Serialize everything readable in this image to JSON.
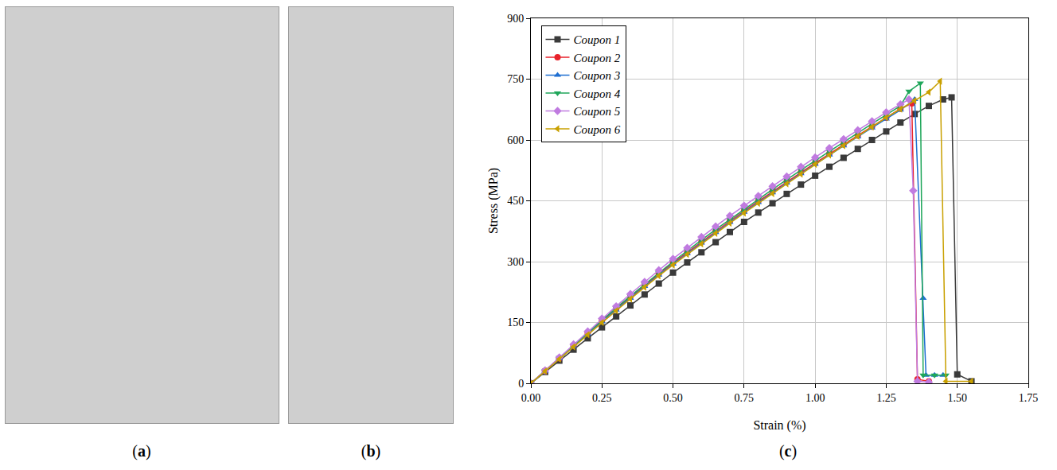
{
  "panel_labels": [
    "(a)",
    "(b)",
    "(c)"
  ],
  "chart_data": {
    "type": "line",
    "x_label": "Strain (%)",
    "y_label": "Stress (MPa)",
    "xlim": [
      0,
      1.75
    ],
    "xticks": [
      {
        "value": 0,
        "label": "0.00"
      },
      {
        "value": 0.25,
        "label": "0.25"
      },
      {
        "value": 0.5,
        "label": "0.50"
      },
      {
        "value": 0.75,
        "label": "0.75"
      },
      {
        "value": 1,
        "label": "1.00"
      },
      {
        "value": 1.25,
        "label": "1.25"
      },
      {
        "value": 1.5,
        "label": "1.50"
      },
      {
        "value": 1.75,
        "label": "1.75"
      }
    ],
    "ylim": [
      0,
      900
    ],
    "yticks": [
      0,
      150,
      300,
      450,
      600,
      750,
      900
    ],
    "grid": true,
    "legend": "top left",
    "series": [
      {
        "name": "Coupon 1",
        "color": "#3a3a3a",
        "marker": "square",
        "line_style": "solid",
        "x": [
          0,
          0.05,
          0.1,
          0.15,
          0.2,
          0.25,
          0.3,
          0.35,
          0.4,
          0.45,
          0.5,
          0.55,
          0.6,
          0.65,
          0.7,
          0.75,
          0.8,
          0.85,
          0.9,
          0.95,
          1.0,
          1.05,
          1.1,
          1.15,
          1.2,
          1.25,
          1.3,
          1.35,
          1.4,
          1.45,
          1.48,
          1.5,
          1.55
        ],
        "values": [
          0,
          28,
          56,
          83,
          111,
          138,
          165,
          192,
          219,
          246,
          273,
          298,
          323,
          348,
          373,
          398,
          421,
          444,
          467,
          490,
          512,
          534,
          556,
          578,
          600,
          621,
          643,
          664,
          684,
          700,
          705,
          22,
          5
        ]
      },
      {
        "name": "Coupon 2",
        "color": "#e8222b",
        "marker": "circle",
        "line_style": "solid",
        "x": [
          0,
          0.05,
          0.1,
          0.15,
          0.2,
          0.25,
          0.3,
          0.35,
          0.4,
          0.45,
          0.5,
          0.55,
          0.6,
          0.65,
          0.7,
          0.75,
          0.8,
          0.85,
          0.9,
          0.95,
          1.0,
          1.05,
          1.1,
          1.15,
          1.2,
          1.25,
          1.3,
          1.34,
          1.36,
          1.4
        ],
        "values": [
          0,
          31,
          62,
          93,
          124,
          155,
          184,
          213,
          242,
          270,
          297,
          323,
          349,
          375,
          400,
          425,
          449,
          473,
          497,
          520,
          543,
          566,
          589,
          611,
          633,
          655,
          677,
          690,
          10,
          5
        ]
      },
      {
        "name": "Coupon 3",
        "color": "#1f6fd1",
        "marker": "triangle-up",
        "line_style": "solid",
        "x": [
          0,
          0.05,
          0.1,
          0.15,
          0.2,
          0.25,
          0.3,
          0.35,
          0.4,
          0.45,
          0.5,
          0.55,
          0.6,
          0.65,
          0.7,
          0.75,
          0.8,
          0.85,
          0.9,
          0.95,
          1.0,
          1.05,
          1.1,
          1.15,
          1.2,
          1.25,
          1.3,
          1.35,
          1.38,
          1.39,
          1.42,
          1.45
        ],
        "values": [
          0,
          30,
          61,
          91,
          122,
          152,
          181,
          210,
          239,
          267,
          294,
          320,
          346,
          372,
          397,
          422,
          446,
          470,
          494,
          517,
          540,
          563,
          586,
          608,
          630,
          652,
          674,
          700,
          210,
          20,
          20,
          20
        ]
      },
      {
        "name": "Coupon 4",
        "color": "#1fa65a",
        "marker": "triangle-down",
        "line_style": "solid",
        "x": [
          0,
          0.05,
          0.1,
          0.15,
          0.2,
          0.25,
          0.3,
          0.35,
          0.4,
          0.45,
          0.5,
          0.55,
          0.6,
          0.65,
          0.7,
          0.75,
          0.8,
          0.85,
          0.9,
          0.95,
          1.0,
          1.05,
          1.1,
          1.15,
          1.2,
          1.25,
          1.3,
          1.33,
          1.37,
          1.38,
          1.42,
          1.46
        ],
        "values": [
          0,
          31,
          63,
          94,
          125,
          156,
          186,
          215,
          244,
          272,
          300,
          327,
          353,
          379,
          404,
          429,
          454,
          478,
          502,
          526,
          549,
          572,
          595,
          618,
          640,
          662,
          684,
          720,
          740,
          20,
          20,
          20
        ]
      },
      {
        "name": "Coupon 5",
        "color": "#c07be0",
        "marker": "diamond",
        "line_style": "solid",
        "x": [
          0,
          0.05,
          0.1,
          0.15,
          0.2,
          0.25,
          0.3,
          0.35,
          0.4,
          0.45,
          0.5,
          0.55,
          0.6,
          0.65,
          0.7,
          0.75,
          0.8,
          0.85,
          0.9,
          0.95,
          1.0,
          1.05,
          1.1,
          1.15,
          1.2,
          1.25,
          1.3,
          1.33,
          1.345,
          1.36,
          1.4
        ],
        "values": [
          0,
          32,
          64,
          96,
          128,
          160,
          190,
          220,
          250,
          279,
          307,
          334,
          361,
          387,
          413,
          438,
          462,
          486,
          510,
          534,
          557,
          580,
          602,
          624,
          646,
          668,
          688,
          700,
          475,
          5,
          3
        ]
      },
      {
        "name": "Coupon 6",
        "color": "#c9a000",
        "marker": "triangle-left",
        "line_style": "solid",
        "x": [
          0,
          0.05,
          0.1,
          0.15,
          0.2,
          0.25,
          0.3,
          0.35,
          0.4,
          0.45,
          0.5,
          0.55,
          0.6,
          0.65,
          0.7,
          0.75,
          0.8,
          0.85,
          0.9,
          0.95,
          1.0,
          1.05,
          1.1,
          1.15,
          1.2,
          1.25,
          1.3,
          1.35,
          1.4,
          1.44,
          1.46,
          1.55
        ],
        "values": [
          0,
          30,
          60,
          90,
          120,
          150,
          179,
          208,
          237,
          265,
          292,
          318,
          344,
          370,
          395,
          420,
          444,
          468,
          492,
          516,
          540,
          563,
          586,
          609,
          632,
          655,
          676,
          697,
          718,
          745,
          5,
          5
        ]
      }
    ]
  }
}
